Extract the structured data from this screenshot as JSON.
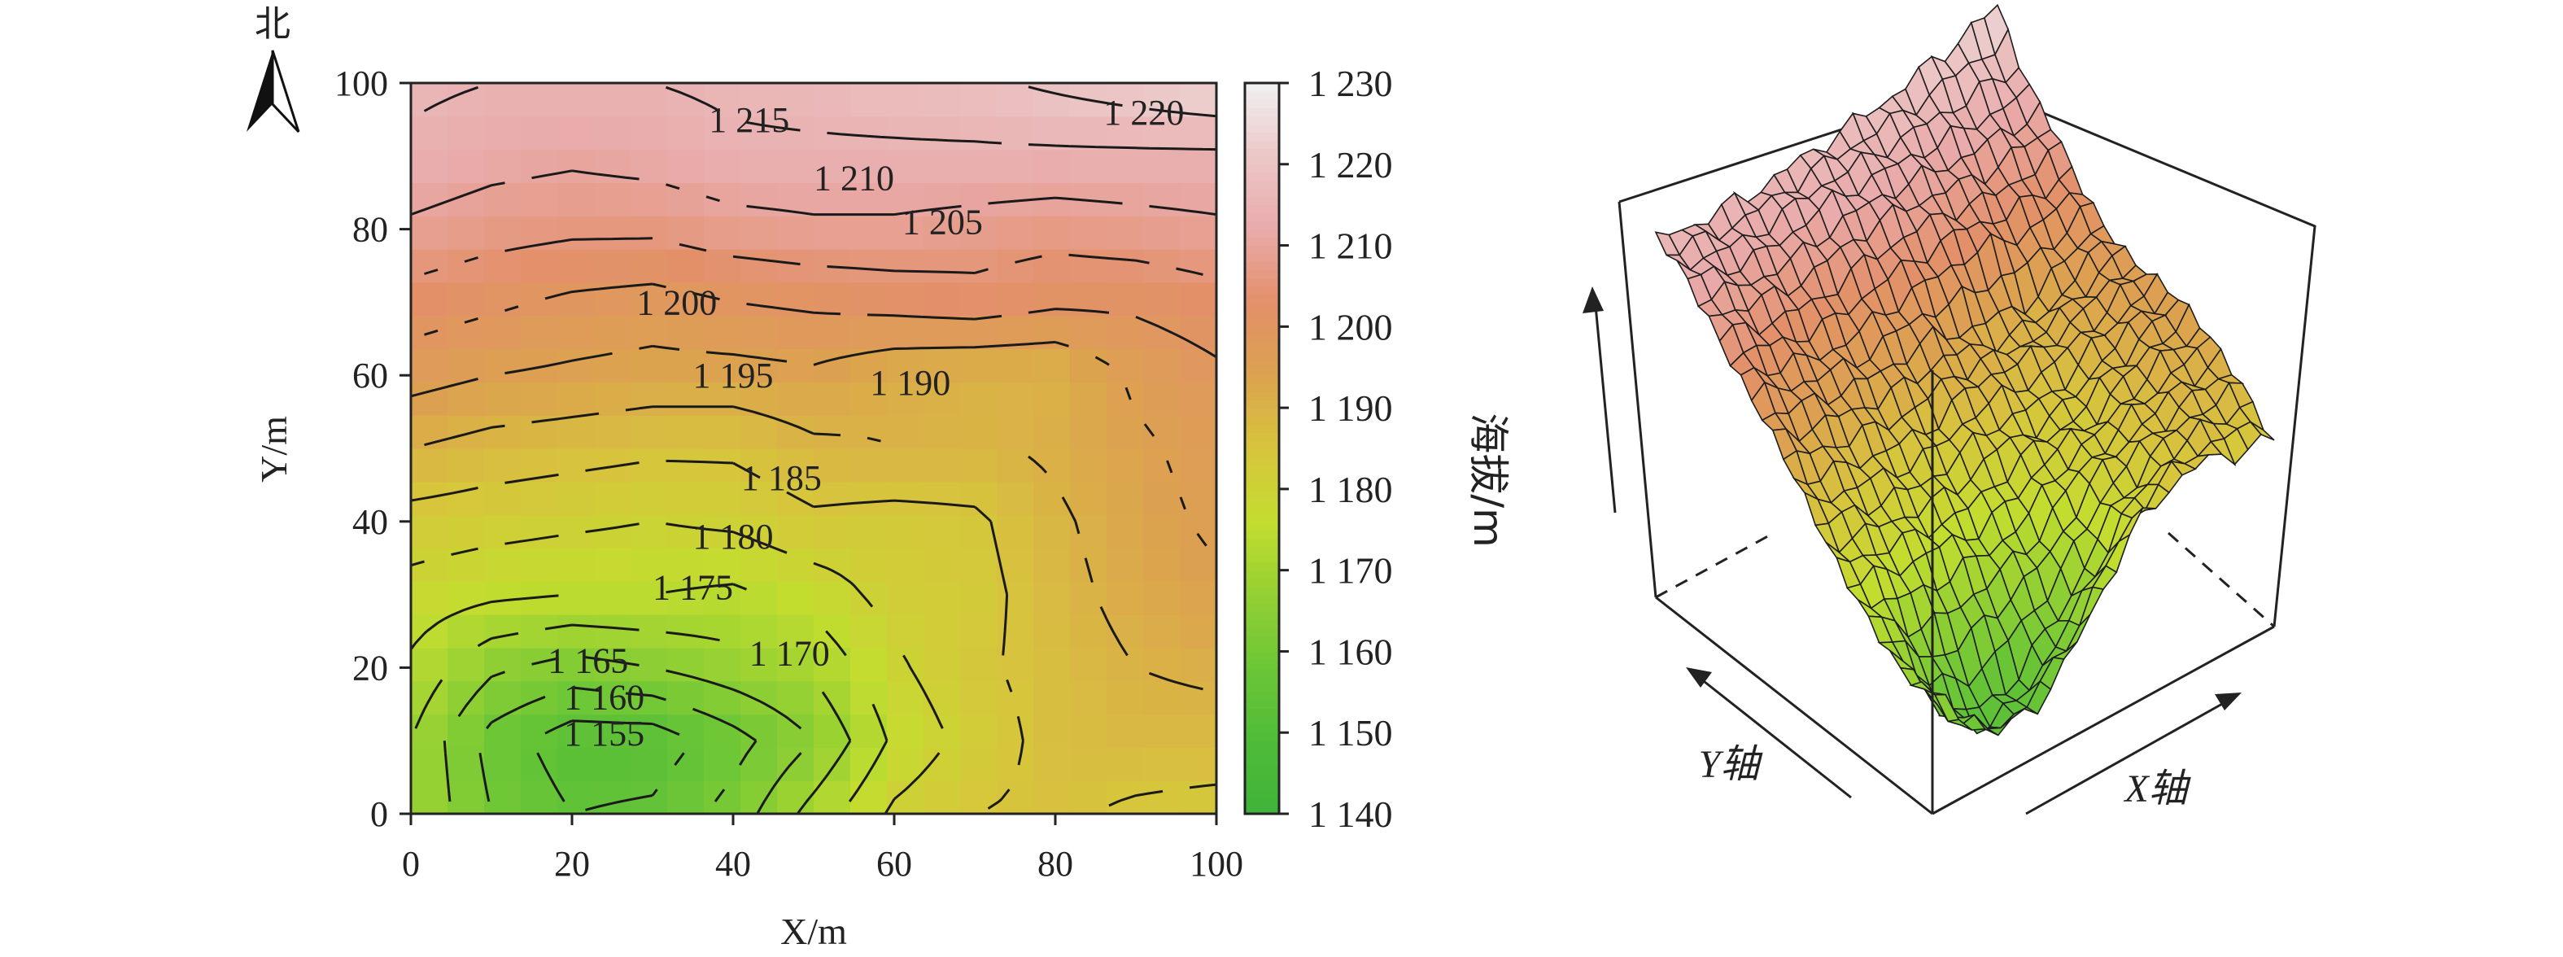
{
  "compass": {
    "label": "北"
  },
  "colorbar": {
    "title": "海拔/m",
    "ticks": [
      "1 230",
      "1 220",
      "1 210",
      "1 200",
      "1 190",
      "1 180",
      "1 170",
      "1 160",
      "1 150",
      "1 140"
    ],
    "range": [
      1140,
      1230
    ],
    "colors": [
      "#3fb23a",
      "#4fbb38",
      "#6cc636",
      "#93d033",
      "#c3dd2f",
      "#d7c53c",
      "#dca24f",
      "#e3906a",
      "#e9aaaa",
      "#ecc7c7",
      "#f0f0f0"
    ]
  },
  "chart_data": [
    {
      "type": "heatmap",
      "title": "",
      "xlabel": "X/m",
      "ylabel": "Y/m",
      "xlim": [
        0,
        100
      ],
      "ylim": [
        0,
        100
      ],
      "x_ticks": [
        "0",
        "20",
        "40",
        "60",
        "80",
        "100"
      ],
      "y_ticks": [
        "0",
        "20",
        "40",
        "60",
        "80",
        "100"
      ],
      "z_label": "海拔/m",
      "z_range": [
        1140,
        1230
      ],
      "x": [
        0,
        10,
        20,
        30,
        40,
        50,
        60,
        70,
        80,
        90,
        100
      ],
      "y": [
        0,
        10,
        20,
        30,
        40,
        50,
        60,
        70,
        80,
        90,
        100
      ],
      "z": [
        [
          1170,
          1160,
          1155,
          1156,
          1162,
          1172,
          1181,
          1185,
          1186,
          1184,
          1183
        ],
        [
          1170,
          1158,
          1152,
          1152,
          1158,
          1165,
          1176,
          1182,
          1187,
          1188,
          1188
        ],
        [
          1174,
          1166,
          1163,
          1165,
          1168,
          1171,
          1179,
          1184,
          1187,
          1190,
          1191
        ],
        [
          1178,
          1176,
          1175,
          1175,
          1174,
          1177,
          1182,
          1183,
          1188,
          1192,
          1194
        ],
        [
          1183,
          1182,
          1181,
          1180,
          1181,
          1184,
          1183,
          1184,
          1189,
          1193,
          1196
        ],
        [
          1190,
          1188,
          1187,
          1186,
          1186,
          1189,
          1190,
          1189,
          1191,
          1194,
          1197
        ],
        [
          1197,
          1195,
          1194,
          1193,
          1193,
          1194,
          1191,
          1190,
          1190,
          1196,
          1199
        ],
        [
          1203,
          1201,
          1199,
          1198,
          1200,
          1201,
          1202,
          1203,
          1201,
          1201,
          1203
        ],
        [
          1209,
          1207,
          1206,
          1206,
          1208,
          1209,
          1209,
          1208,
          1207,
          1208,
          1209
        ],
        [
          1214,
          1212,
          1211,
          1212,
          1214,
          1214,
          1214,
          1214,
          1214,
          1214,
          1214
        ],
        [
          1216,
          1215,
          1215,
          1215,
          1216,
          1217,
          1218,
          1219,
          1221,
          1223,
          1225
        ]
      ],
      "contour_labels": [
        "1 215",
        "1 220",
        "1 210",
        "1 205",
        "1 200",
        "1 195",
        "1 190",
        "1 185",
        "1 180",
        "1 175",
        "1 170",
        "1 165",
        "1 160",
        "1 155"
      ]
    },
    {
      "type": "surface",
      "title": "",
      "axis_labels": {
        "x": "X轴",
        "y": "Y轴"
      }
    }
  ]
}
